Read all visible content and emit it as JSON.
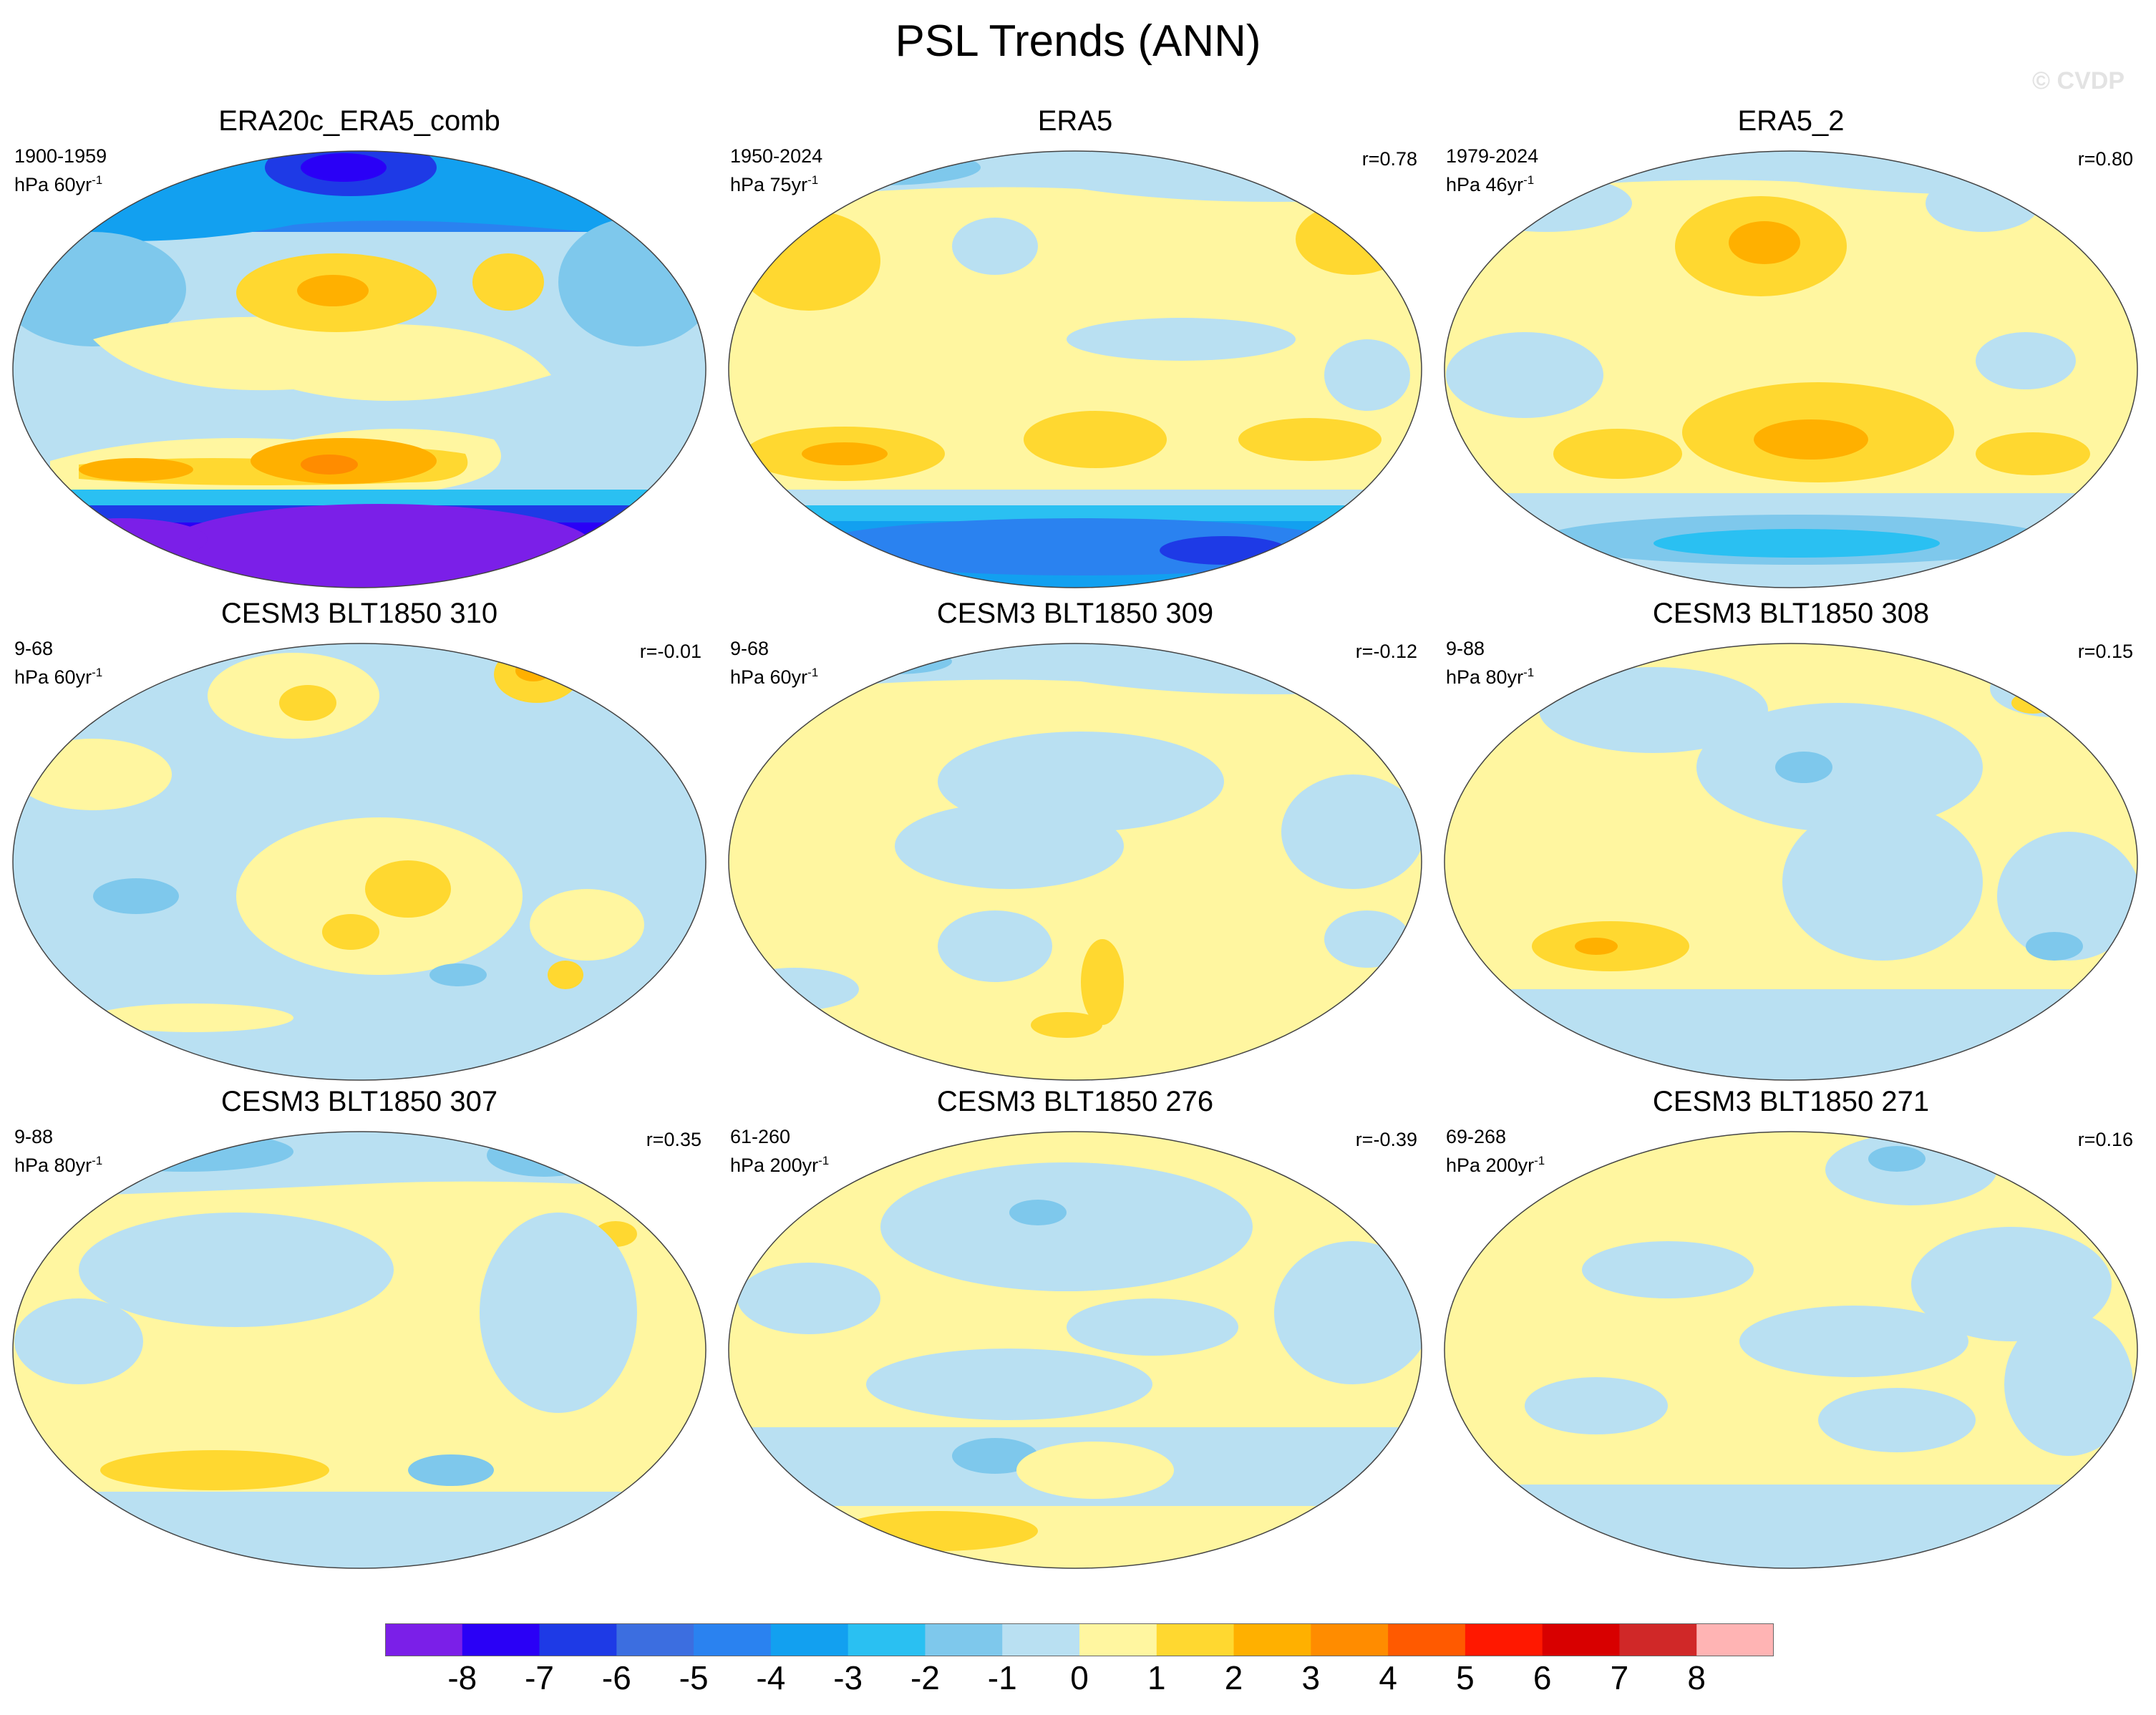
{
  "figure": {
    "title": "PSL Trends (ANN)",
    "watermark": "© CVDP"
  },
  "colorbar": {
    "colors": [
      "#7b1fe8",
      "#2a00f6",
      "#1e3ae6",
      "#3c6ee0",
      "#2a82f0",
      "#12a0f0",
      "#2ac0f2",
      "#7ec8ec",
      "#b9e0f2",
      "#fff6a0",
      "#ffd830",
      "#ffb000",
      "#ff8c00",
      "#ff5a00",
      "#ff1800",
      "#d80000",
      "#d02828",
      "#ffb4b4"
    ],
    "labels": [
      "-8",
      "-7",
      "-6",
      "-5",
      "-4",
      "-3",
      "-2",
      "-1",
      "0",
      "1",
      "2",
      "3",
      "4",
      "5",
      "6",
      "7",
      "8"
    ]
  },
  "panels": [
    {
      "id": "era20c",
      "title": "ERA20c_ERA5_comb",
      "period": "1900-1959",
      "units": "hPa 60yr",
      "units_exp": "-1",
      "r": ""
    },
    {
      "id": "era5",
      "title": "ERA5",
      "period": "1950-2024",
      "units": "hPa 75yr",
      "units_exp": "-1",
      "r": "r=0.78"
    },
    {
      "id": "era5_2",
      "title": "ERA5_2",
      "period": "1979-2024",
      "units": "hPa 46yr",
      "units_exp": "-1",
      "r": "r=0.80"
    },
    {
      "id": "m310",
      "title": "CESM3 BLT1850 310",
      "period": "9-68",
      "units": "hPa 60yr",
      "units_exp": "-1",
      "r": "r=-0.01"
    },
    {
      "id": "m309",
      "title": "CESM3 BLT1850 309",
      "period": "9-68",
      "units": "hPa 60yr",
      "units_exp": "-1",
      "r": "r=-0.12"
    },
    {
      "id": "m308",
      "title": "CESM3 BLT1850 308",
      "period": "9-88",
      "units": "hPa 80yr",
      "units_exp": "-1",
      "r": "r=0.15"
    },
    {
      "id": "m307",
      "title": "CESM3 BLT1850 307",
      "period": "9-88",
      "units": "hPa 80yr",
      "units_exp": "-1",
      "r": "r=0.35"
    },
    {
      "id": "m276",
      "title": "CESM3 BLT1850 276",
      "period": "61-260",
      "units": "hPa 200yr",
      "units_exp": "-1",
      "r": "r=-0.39"
    },
    {
      "id": "m271",
      "title": "CESM3 BLT1850 271",
      "period": "69-268",
      "units": "hPa 200yr",
      "units_exp": "-1",
      "r": "r=0.16"
    }
  ]
}
